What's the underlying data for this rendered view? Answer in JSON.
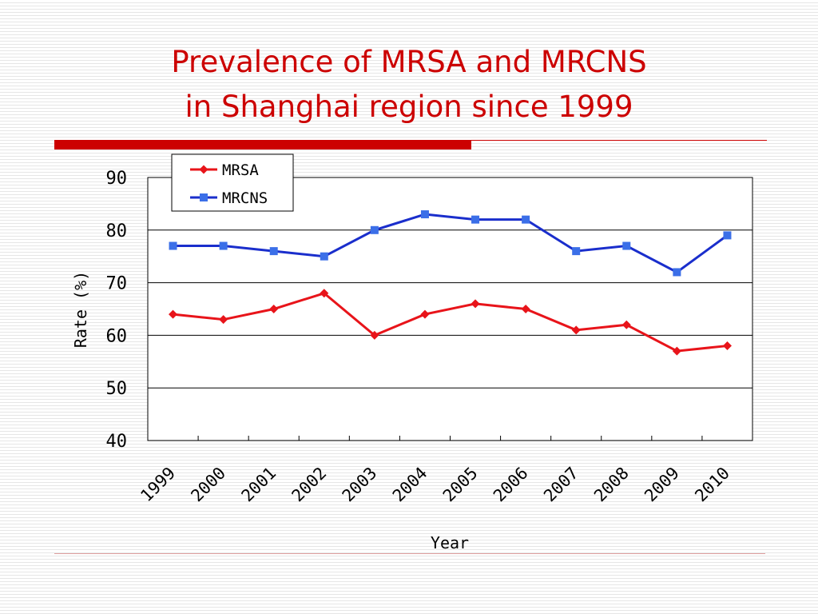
{
  "slide": {
    "title_line1": "Prevalence of MRSA and MRCNS",
    "title_line2": "in Shanghai region since 1999"
  },
  "colors": {
    "title": "#cc0000",
    "accent_bar": "#cc0000",
    "mrsa": "#e8141a",
    "mrcns": "#1a2ecc",
    "mrcns_marker": "#3b6fe8"
  },
  "chart_data": {
    "type": "line",
    "x": [
      "1999",
      "2000",
      "2001",
      "2002",
      "2003",
      "2004",
      "2005",
      "2006",
      "2007",
      "2008",
      "2009",
      "2010"
    ],
    "series": [
      {
        "name": "MRSA",
        "marker": "diamond",
        "color": "#e8141a",
        "values": [
          64,
          63,
          65,
          68,
          60,
          64,
          66,
          65,
          61,
          62,
          57,
          58
        ]
      },
      {
        "name": "MRCNS",
        "marker": "square",
        "color": "#1a2ecc",
        "values": [
          77,
          77,
          76,
          75,
          80,
          83,
          82,
          82,
          76,
          77,
          72,
          79
        ]
      }
    ],
    "xlabel": "Year",
    "ylabel": "Rate (%)",
    "ylim": [
      40,
      90
    ],
    "yticks": [
      40,
      50,
      60,
      70,
      80,
      90
    ],
    "grid": "horizontal",
    "legend": "top-left"
  }
}
